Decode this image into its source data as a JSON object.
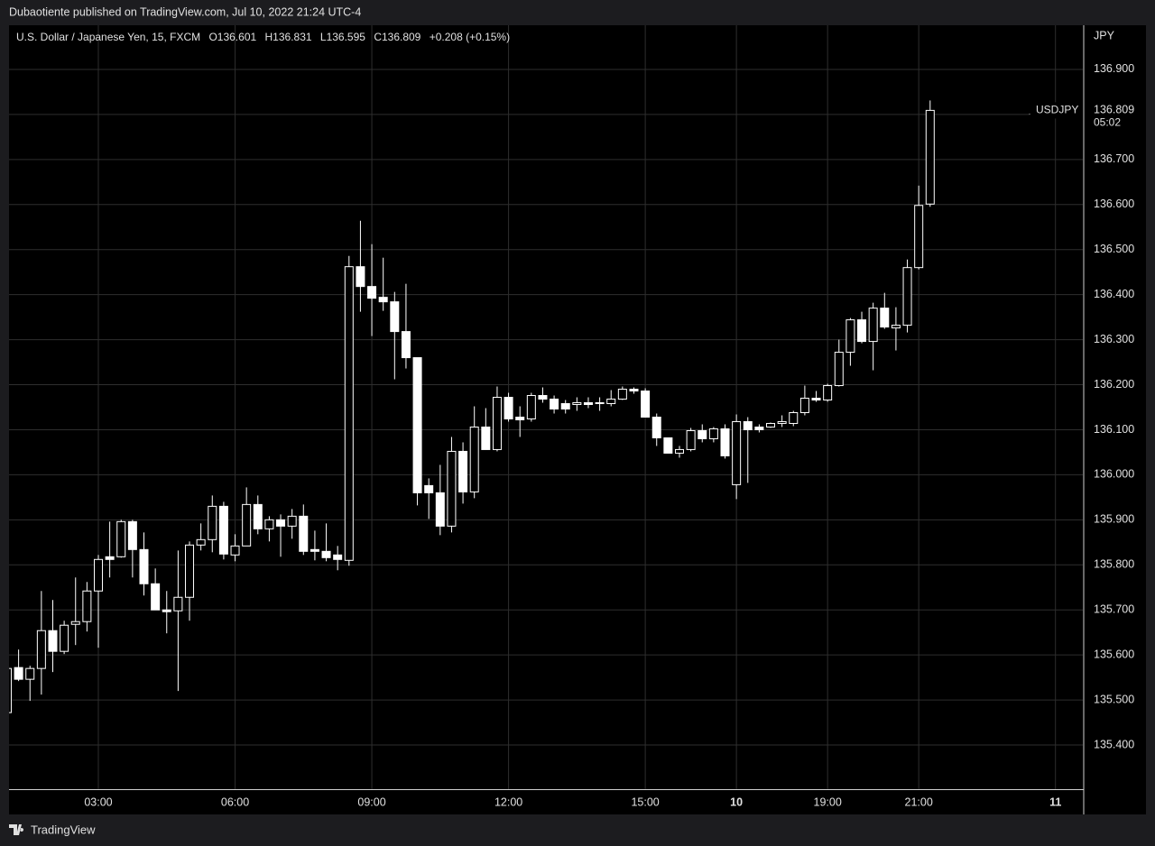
{
  "header": {
    "published": "Dubaotiente published on TradingView.com, Jul 10, 2022 21:24 UTC-4"
  },
  "footer": {
    "brand": "TradingView"
  },
  "chart_data": {
    "type": "candlestick",
    "legend": {
      "symbol": "U.S. Dollar / Japanese Yen, 15, FXCM",
      "open": "O136.601",
      "high": "H136.831",
      "low": "L136.595",
      "close": "C136.809",
      "change": "+0.208 (+0.15%)"
    },
    "y_axis_label": "JPY",
    "last_price": {
      "symbol": "USDJPY",
      "value": 136.809,
      "label": "136.809",
      "countdown": "05:02"
    },
    "color": "#ffffff",
    "background": "#000000",
    "grid": true,
    "grid_color": "#2e2e2e",
    "x": [
      1,
      1.25,
      1.5,
      1.75,
      2,
      2.25,
      2.5,
      2.75,
      3,
      3.25,
      3.5,
      3.75,
      4,
      4.25,
      4.5,
      4.75,
      5,
      5.25,
      5.5,
      5.75,
      6,
      6.25,
      6.5,
      6.75,
      7,
      7.25,
      7.5,
      7.75,
      8,
      8.25,
      8.5,
      8.75,
      9,
      9.25,
      9.5,
      9.75,
      10,
      10.25,
      10.5,
      10.75,
      11,
      11.25,
      11.5,
      11.75,
      12,
      12.25,
      12.5,
      12.75,
      13,
      13.25,
      13.5,
      13.75,
      14,
      14.25,
      14.5,
      14.75,
      15,
      15.25,
      15.5,
      15.75,
      16,
      16.25,
      16.5,
      16.75,
      17,
      17.25,
      17.5,
      17.75,
      18,
      18.25,
      18.5,
      18.75,
      19,
      19.25,
      19.5,
      19.75,
      20,
      20.25,
      20.5,
      20.75,
      21,
      21.25
    ],
    "open": [
      135.472,
      135.572,
      135.546,
      135.57,
      135.654,
      135.608,
      135.668,
      135.674,
      135.742,
      135.818,
      135.818,
      135.896,
      135.834,
      135.758,
      135.7,
      135.698,
      135.728,
      135.844,
      135.856,
      135.93,
      135.822,
      135.842,
      135.934,
      135.88,
      135.9,
      135.886,
      135.908,
      135.834,
      135.83,
      135.822,
      135.81,
      136.462,
      136.418,
      136.394,
      136.384,
      136.318,
      136.26,
      135.976,
      135.96,
      135.886,
      136.052,
      135.962,
      136.106,
      136.056,
      136.172,
      136.128,
      136.124,
      136.176,
      136.168,
      136.158,
      136.156,
      136.16,
      136.158,
      136.158,
      136.168,
      136.19,
      136.186,
      136.128,
      136.082,
      136.048,
      136.056,
      136.098,
      136.08,
      136.102,
      135.978,
      136.118,
      136.106,
      136.106,
      136.114,
      136.114,
      136.138,
      136.17,
      136.166,
      136.198,
      136.272,
      136.344,
      136.296,
      136.37,
      136.326,
      136.332,
      136.46,
      136.601
    ],
    "high": [
      135.572,
      135.612,
      135.576,
      135.742,
      135.722,
      135.676,
      135.772,
      135.762,
      135.822,
      135.896,
      135.9,
      135.9,
      135.872,
      135.792,
      135.742,
      135.832,
      135.852,
      135.892,
      135.954,
      135.94,
      135.868,
      135.972,
      135.954,
      135.908,
      135.912,
      135.924,
      135.934,
      135.876,
      135.892,
      135.842,
      136.486,
      136.564,
      136.512,
      136.482,
      136.406,
      136.424,
      136.26,
      135.992,
      136.022,
      136.084,
      136.072,
      136.152,
      136.148,
      136.196,
      136.182,
      136.152,
      136.182,
      136.194,
      136.176,
      136.166,
      136.172,
      136.172,
      136.172,
      136.188,
      136.196,
      136.194,
      136.192,
      136.136,
      136.082,
      136.064,
      136.104,
      136.112,
      136.106,
      136.112,
      136.134,
      136.128,
      136.112,
      136.116,
      136.132,
      136.142,
      136.198,
      136.186,
      136.202,
      136.3,
      136.348,
      136.362,
      136.382,
      136.404,
      136.372,
      136.478,
      136.642,
      136.831
    ],
    "low": [
      135.472,
      135.542,
      135.498,
      135.512,
      135.562,
      135.602,
      135.622,
      135.652,
      135.616,
      135.772,
      135.816,
      135.772,
      135.732,
      135.7,
      135.648,
      135.52,
      135.676,
      135.832,
      135.828,
      135.812,
      135.808,
      135.842,
      135.868,
      135.852,
      135.818,
      135.858,
      135.822,
      135.81,
      135.808,
      135.788,
      135.798,
      136.362,
      136.308,
      136.364,
      136.212,
      136.236,
      135.932,
      135.902,
      135.866,
      135.872,
      135.936,
      135.948,
      136.056,
      136.052,
      136.118,
      136.084,
      136.118,
      136.16,
      136.136,
      136.136,
      136.142,
      136.148,
      136.142,
      136.152,
      136.166,
      136.18,
      136.128,
      136.064,
      136.048,
      136.038,
      136.052,
      136.072,
      136.072,
      136.036,
      135.946,
      135.982,
      136.094,
      136.104,
      136.106,
      136.108,
      136.132,
      136.162,
      136.162,
      136.196,
      136.242,
      136.292,
      136.232,
      136.324,
      136.276,
      136.316,
      136.456,
      136.595
    ],
    "close": [
      135.57,
      135.546,
      135.57,
      135.654,
      135.608,
      135.666,
      135.674,
      135.742,
      135.812,
      135.812,
      135.896,
      135.834,
      135.758,
      135.7,
      135.696,
      135.728,
      135.844,
      135.856,
      135.93,
      135.824,
      135.842,
      135.934,
      135.88,
      135.9,
      135.886,
      135.908,
      135.83,
      135.83,
      135.816,
      135.812,
      136.462,
      136.418,
      136.392,
      136.384,
      136.318,
      136.26,
      135.96,
      135.96,
      135.886,
      136.052,
      135.962,
      136.106,
      136.056,
      136.172,
      136.124,
      136.122,
      136.176,
      136.168,
      136.146,
      136.146,
      136.16,
      136.156,
      136.16,
      136.168,
      136.19,
      136.186,
      136.128,
      136.082,
      136.048,
      136.056,
      136.098,
      136.08,
      136.102,
      136.042,
      136.118,
      136.1,
      136.1,
      136.114,
      136.118,
      136.138,
      136.17,
      136.166,
      136.198,
      136.272,
      136.344,
      136.296,
      136.37,
      136.328,
      136.332,
      136.46,
      136.598,
      136.809
    ],
    "xlim": [
      1.04,
      24.6
    ],
    "xticks": [
      {
        "value": 3,
        "label": "03:00"
      },
      {
        "value": 6,
        "label": "06:00"
      },
      {
        "value": 9,
        "label": "09:00"
      },
      {
        "value": 12,
        "label": "12:00"
      },
      {
        "value": 15,
        "label": "15:00"
      },
      {
        "value": 17,
        "label": "10"
      },
      {
        "value": 19,
        "label": "19:00"
      },
      {
        "value": 21,
        "label": "21:00"
      },
      {
        "value": 24,
        "label": "11"
      }
    ],
    "ylim": [
      135.302,
      136.998
    ],
    "yticks": [
      {
        "value": 135.4,
        "label": "135.400"
      },
      {
        "value": 135.5,
        "label": "135.500"
      },
      {
        "value": 135.6,
        "label": "135.600"
      },
      {
        "value": 135.7,
        "label": "135.700"
      },
      {
        "value": 135.8,
        "label": "135.800"
      },
      {
        "value": 135.9,
        "label": "135.900"
      },
      {
        "value": 136.0,
        "label": "136.000"
      },
      {
        "value": 136.1,
        "label": "136.100"
      },
      {
        "value": 136.2,
        "label": "136.200"
      },
      {
        "value": 136.3,
        "label": "136.300"
      },
      {
        "value": 136.4,
        "label": "136.400"
      },
      {
        "value": 136.5,
        "label": "136.500"
      },
      {
        "value": 136.6,
        "label": "136.600"
      },
      {
        "value": 136.7,
        "label": "136.700"
      },
      {
        "value": 136.8,
        "label": "136.800"
      },
      {
        "value": 136.9,
        "label": "136.900"
      }
    ]
  }
}
